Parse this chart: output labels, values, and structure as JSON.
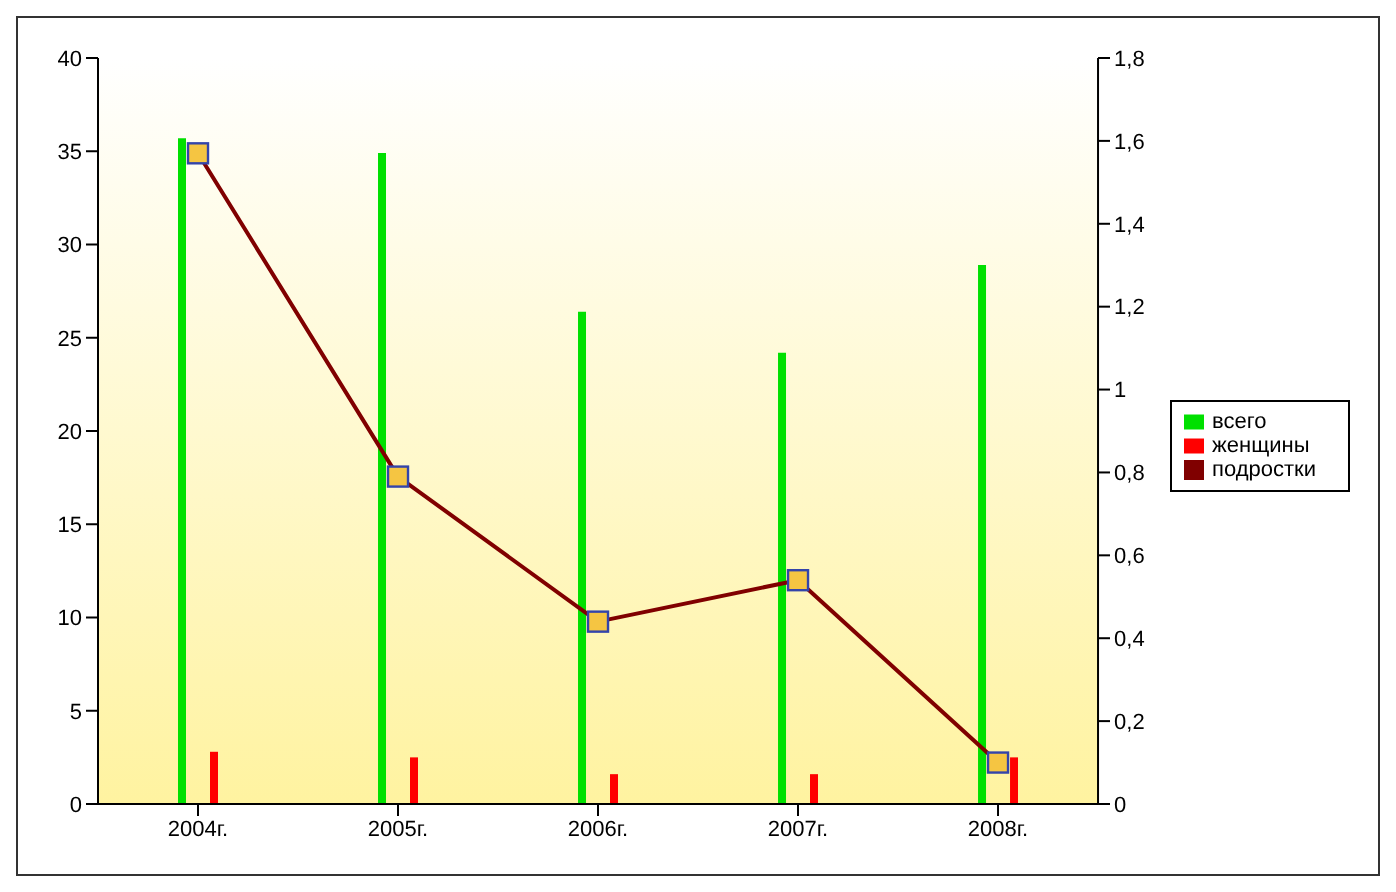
{
  "chart_data": {
    "type": "bar",
    "categories": [
      "2004г.",
      "2005г.",
      "2006г.",
      "2007г.",
      "2008г."
    ],
    "series": [
      {
        "name": "всего",
        "color": "#00e000",
        "values": [
          35.7,
          34.9,
          26.4,
          24.2,
          28.9
        ]
      },
      {
        "name": "женщины",
        "color": "#ff0000",
        "values": [
          2.8,
          2.5,
          1.6,
          1.6,
          2.5
        ]
      },
      {
        "name": "подростки",
        "type": "line",
        "axis": "y2",
        "color": "#800000",
        "marker": "square",
        "values": [
          1.57,
          0.79,
          0.44,
          0.54,
          0.1
        ]
      }
    ],
    "ylim": [
      0,
      40
    ],
    "yticks": [
      0,
      5,
      10,
      15,
      20,
      25,
      30,
      35,
      40
    ],
    "y2lim": [
      0,
      1.8
    ],
    "y2ticks": [
      0,
      {
        "value": 0.2,
        "label": "0,2"
      },
      {
        "value": 0.4,
        "label": "0,4"
      },
      {
        "value": 0.6,
        "label": "0,6"
      },
      {
        "value": 0.8,
        "label": "0,8"
      },
      1,
      {
        "value": 1.2,
        "label": "1,2"
      },
      {
        "value": 1.4,
        "label": "1,4"
      },
      {
        "value": 1.6,
        "label": "1,6"
      },
      {
        "value": 1.8,
        "label": "1,8"
      }
    ],
    "legend": "right"
  }
}
